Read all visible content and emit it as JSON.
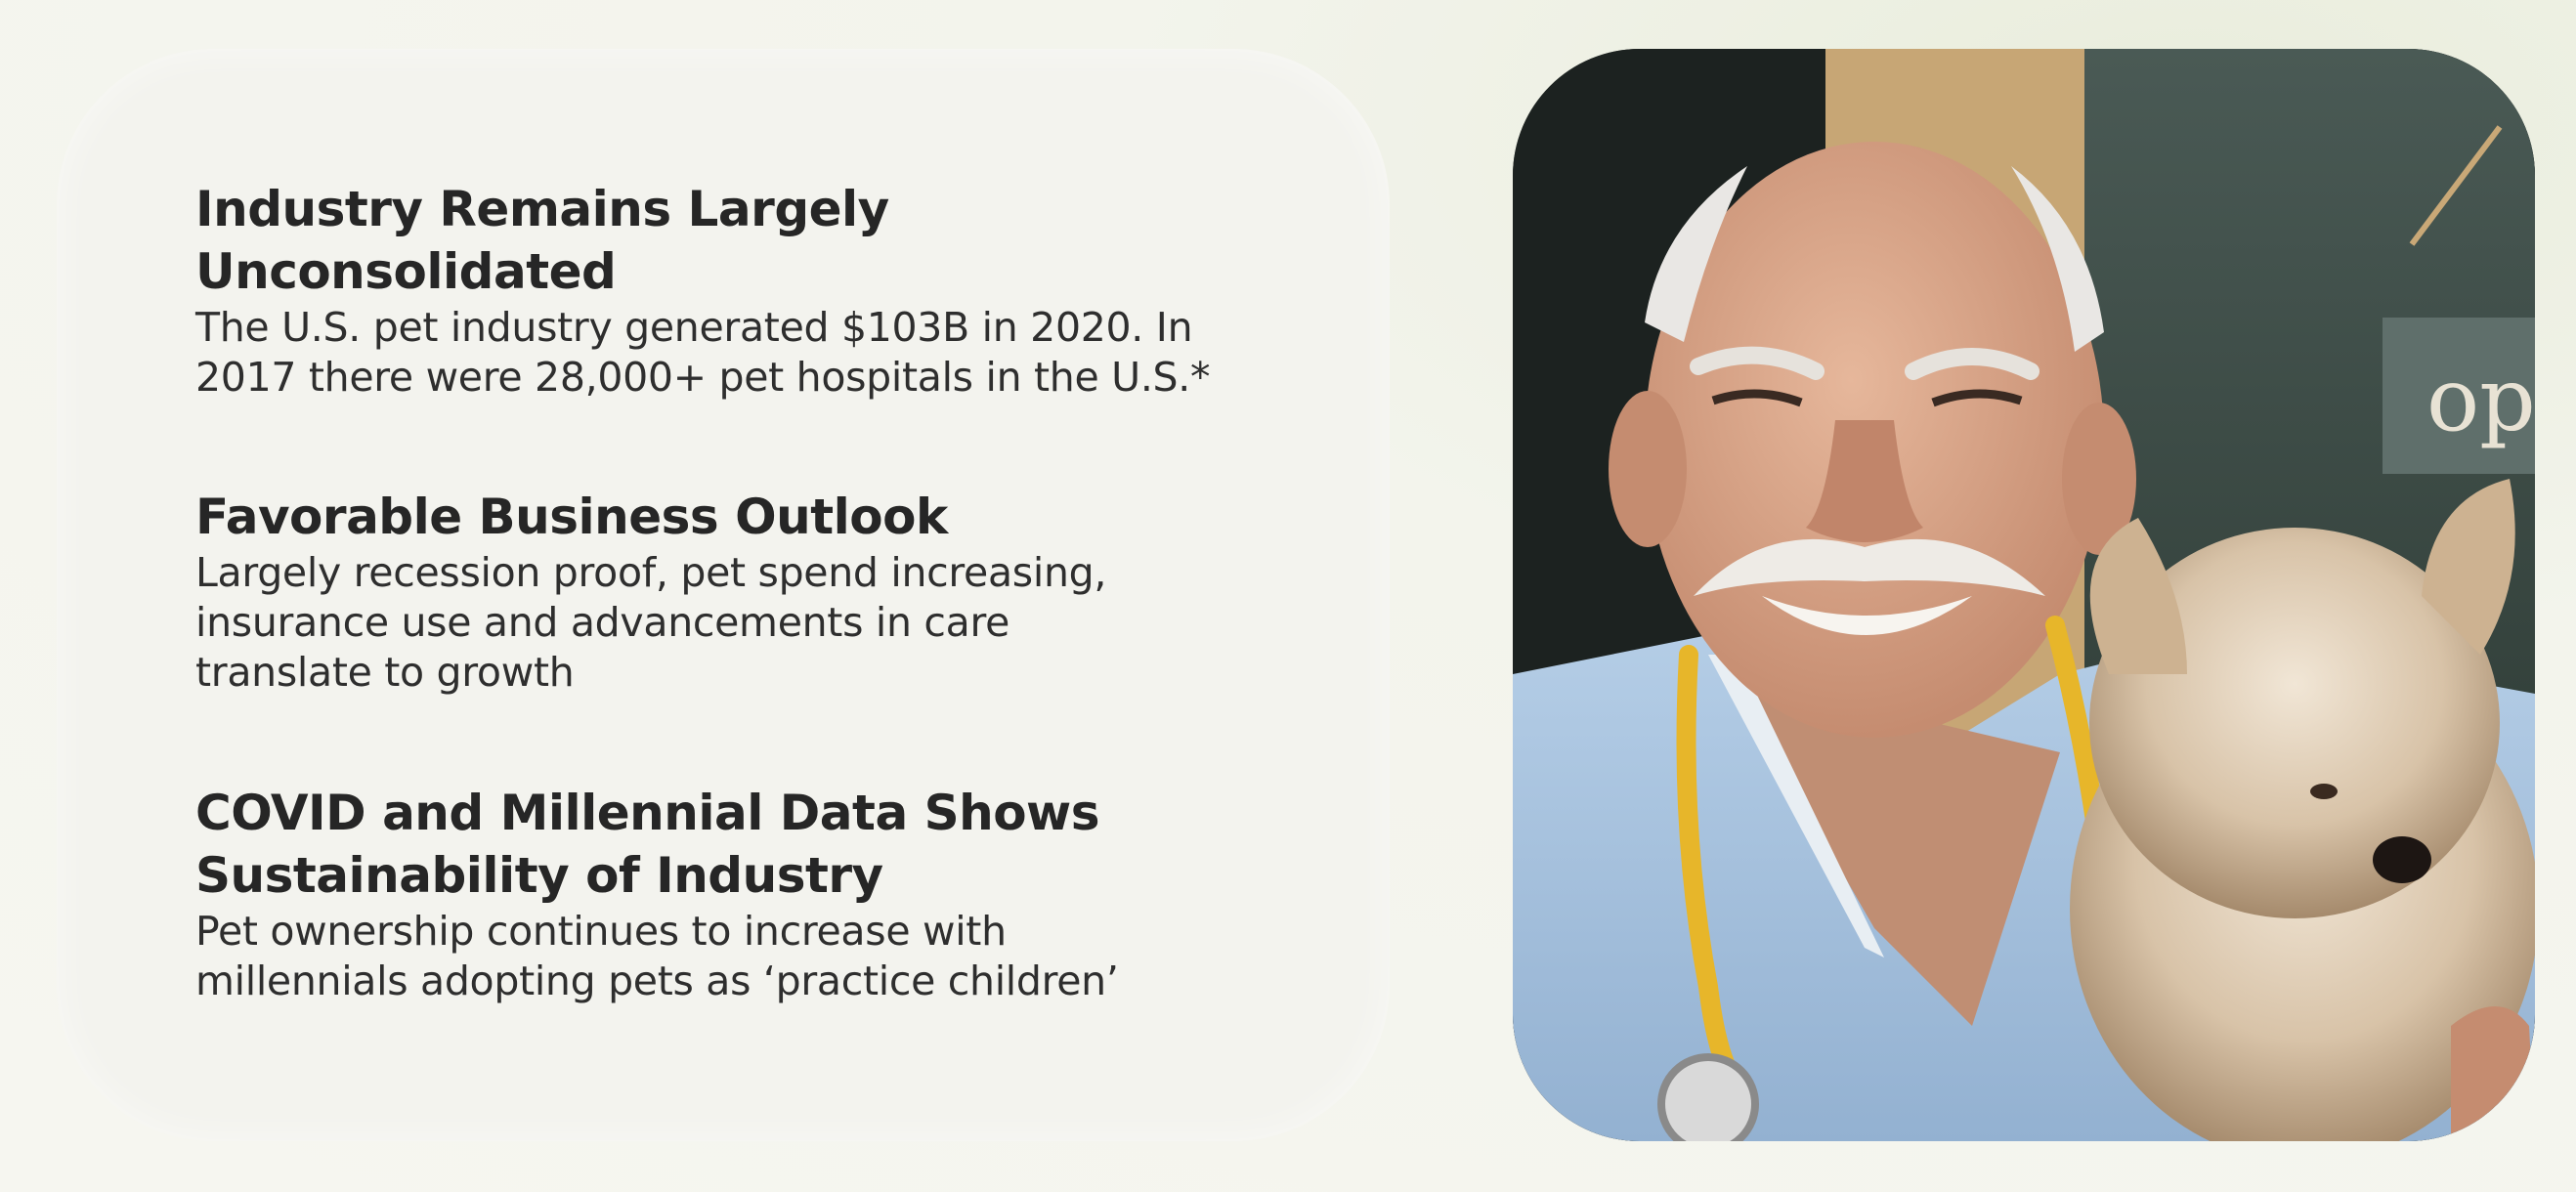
{
  "sections": [
    {
      "heading_line1": "Industry Remains Largely",
      "heading_line2": "Unconsolidated",
      "body_line1": "The U.S. pet industry generated $103B in 2020. In",
      "body_line2": "2017 there were 28,000+ pet hospitals in the U.S.*"
    },
    {
      "heading_line1": "Favorable Business Outlook",
      "body_line1": "Largely recession proof, pet spend increasing,",
      "body_line2": "insurance use and advancements in care",
      "body_line3": "translate to growth"
    },
    {
      "heading_line1": "COVID and Millennial Data Shows",
      "heading_line2": "Sustainability of Industry",
      "body_line1": "Pet ownership continues to increase with",
      "body_line2": "millennials adopting pets as ‘practice children’"
    }
  ],
  "photo": {
    "sign_text": "op",
    "colors": {
      "scrubs": "#a9c4e0",
      "stethoscope": "#e7b62a",
      "skin": "#d9a88c",
      "background_dark": "#1e2624",
      "window_green": "#3c4a45",
      "door_wood": "#c9a877"
    }
  }
}
